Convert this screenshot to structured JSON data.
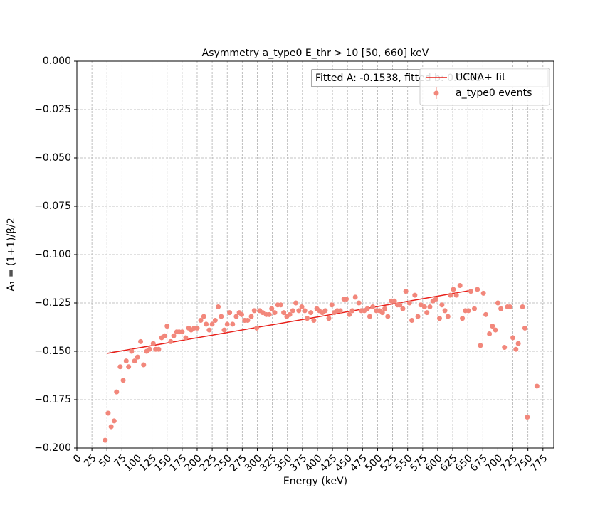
{
  "chart_data": {
    "type": "scatter",
    "title": "Asymmetry a_type0 E_thr > 10 [50, 660] keV",
    "xlabel": "Energy (keV)",
    "ylabel": "A₁ = (1+1)/β/2",
    "annotation": "Fitted A: -0.1538, fitted b: 0.0003",
    "xlim": [
      0,
      793
    ],
    "ylim": [
      -0.2,
      0
    ],
    "xticks": [
      0,
      25,
      50,
      75,
      100,
      125,
      150,
      175,
      200,
      225,
      250,
      275,
      300,
      325,
      350,
      375,
      400,
      425,
      450,
      475,
      500,
      525,
      550,
      575,
      600,
      625,
      650,
      675,
      700,
      725,
      750,
      775
    ],
    "yticks": [
      {
        "value": 0,
        "label": "0.000"
      },
      {
        "value": -0.025,
        "label": "−0.025"
      },
      {
        "value": -0.05,
        "label": "−0.050"
      },
      {
        "value": -0.075,
        "label": "−0.075"
      },
      {
        "value": -0.1,
        "label": "−0.100"
      },
      {
        "value": -0.125,
        "label": "−0.125"
      },
      {
        "value": -0.15,
        "label": "−0.150"
      },
      {
        "value": -0.175,
        "label": "−0.175"
      },
      {
        "value": -0.2,
        "label": "−0.200"
      }
    ],
    "grid": true,
    "legend": "upper right",
    "series": [
      {
        "name": "UCNA+ fit",
        "type": "line",
        "color": "#e8201a",
        "x": [
          50,
          655
        ],
        "values": [
          -0.1511,
          -0.1185
        ]
      },
      {
        "name": "a_type0 events",
        "type": "scatter",
        "color": "#f2877b",
        "x": [
          47,
          52,
          57,
          62,
          66,
          72,
          77,
          82,
          86,
          91,
          96,
          101,
          106,
          111,
          116,
          121,
          127,
          131,
          136,
          141,
          146,
          150,
          156,
          161,
          166,
          170,
          175,
          181,
          186,
          190,
          195,
          200,
          206,
          211,
          215,
          220,
          225,
          230,
          235,
          240,
          245,
          250,
          254,
          259,
          265,
          270,
          274,
          279,
          284,
          290,
          295,
          299,
          304,
          309,
          315,
          320,
          324,
          329,
          334,
          339,
          344,
          349,
          354,
          359,
          364,
          369,
          374,
          379,
          383,
          389,
          394,
          399,
          403,
          408,
          413,
          419,
          424,
          428,
          433,
          438,
          444,
          448,
          453,
          458,
          463,
          469,
          473,
          478,
          483,
          487,
          492,
          498,
          503,
          508,
          512,
          517,
          523,
          528,
          533,
          537,
          542,
          547,
          553,
          557,
          562,
          567,
          572,
          578,
          582,
          587,
          592,
          597,
          603,
          607,
          612,
          617,
          621,
          626,
          631,
          637,
          641,
          646,
          651,
          655,
          661,
          666,
          671,
          676,
          680,
          686,
          691,
          696,
          700,
          705,
          711,
          716,
          720,
          725,
          730,
          734,
          741,
          745,
          749,
          765
        ],
        "values": [
          -0.196,
          -0.182,
          -0.189,
          -0.186,
          -0.171,
          -0.158,
          -0.165,
          -0.155,
          -0.158,
          -0.15,
          -0.155,
          -0.153,
          -0.145,
          -0.157,
          -0.15,
          -0.149,
          -0.146,
          -0.149,
          -0.149,
          -0.143,
          -0.142,
          -0.137,
          -0.145,
          -0.142,
          -0.14,
          -0.14,
          -0.14,
          -0.143,
          -0.138,
          -0.139,
          -0.138,
          -0.138,
          -0.134,
          -0.132,
          -0.136,
          -0.139,
          -0.136,
          -0.134,
          -0.127,
          -0.132,
          -0.139,
          -0.136,
          -0.13,
          -0.136,
          -0.132,
          -0.13,
          -0.131,
          -0.134,
          -0.134,
          -0.132,
          -0.129,
          -0.138,
          -0.129,
          -0.13,
          -0.131,
          -0.131,
          -0.128,
          -0.13,
          -0.126,
          -0.126,
          -0.13,
          -0.132,
          -0.131,
          -0.129,
          -0.125,
          -0.129,
          -0.127,
          -0.129,
          -0.133,
          -0.13,
          -0.134,
          -0.128,
          -0.129,
          -0.13,
          -0.129,
          -0.133,
          -0.126,
          -0.13,
          -0.129,
          -0.129,
          -0.123,
          -0.123,
          -0.131,
          -0.129,
          -0.122,
          -0.125,
          -0.129,
          -0.129,
          -0.128,
          -0.132,
          -0.127,
          -0.129,
          -0.129,
          -0.13,
          -0.128,
          -0.132,
          -0.124,
          -0.124,
          -0.126,
          -0.126,
          -0.128,
          -0.119,
          -0.125,
          -0.134,
          -0.121,
          -0.132,
          -0.126,
          -0.127,
          -0.13,
          -0.127,
          -0.124,
          -0.123,
          -0.133,
          -0.126,
          -0.129,
          -0.132,
          -0.121,
          -0.118,
          -0.121,
          -0.116,
          -0.133,
          -0.129,
          -0.129,
          -0.119,
          -0.128,
          -0.118,
          -0.147,
          -0.12,
          -0.131,
          -0.141,
          -0.137,
          -0.139,
          -0.125,
          -0.128,
          -0.148,
          -0.127,
          -0.127,
          -0.143,
          -0.149,
          -0.146,
          -0.127,
          -0.138,
          -0.184,
          -0.168
        ]
      }
    ]
  }
}
